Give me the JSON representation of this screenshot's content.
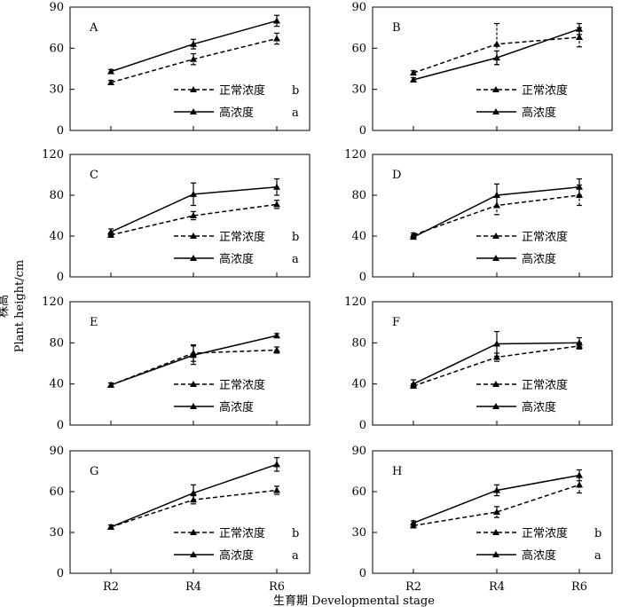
{
  "figure": {
    "xlabel": "生育期 Developmental stage",
    "ylabel_cn": "株高",
    "ylabel_en": "Plant height/cm"
  },
  "chart_data": [
    {
      "type": "line",
      "panel": "A",
      "x": [
        "R2",
        "R4",
        "R6"
      ],
      "ylim": [
        0,
        90
      ],
      "yticks": [
        0,
        30,
        60,
        90
      ],
      "series": [
        {
          "name": "正常浓度",
          "style": "dashed",
          "values": [
            35,
            52,
            67
          ],
          "errors": [
            1.5,
            4,
            4
          ]
        },
        {
          "name": "高浓度",
          "style": "solid",
          "values": [
            43,
            63,
            80
          ],
          "errors": [
            1.5,
            3.5,
            4
          ]
        }
      ],
      "legend_marks": [
        "b",
        "a"
      ]
    },
    {
      "type": "line",
      "panel": "B",
      "x": [
        "R2",
        "R4",
        "R6"
      ],
      "ylim": [
        0,
        90
      ],
      "yticks": [
        0,
        30,
        60,
        90
      ],
      "series": [
        {
          "name": "正常浓度",
          "style": "dashed",
          "values": [
            42,
            63,
            68
          ],
          "errors": [
            1.5,
            15,
            7
          ]
        },
        {
          "name": "高浓度",
          "style": "solid",
          "values": [
            37,
            53,
            74
          ],
          "errors": [
            1.5,
            5,
            4
          ]
        }
      ],
      "legend_marks": [
        "",
        ""
      ]
    },
    {
      "type": "line",
      "panel": "C",
      "x": [
        "R2",
        "R4",
        "R6"
      ],
      "ylim": [
        0,
        120
      ],
      "yticks": [
        0,
        40,
        80,
        120
      ],
      "series": [
        {
          "name": "正常浓度",
          "style": "dashed",
          "values": [
            41,
            60,
            71
          ],
          "errors": [
            2,
            4,
            4
          ]
        },
        {
          "name": "高浓度",
          "style": "solid",
          "values": [
            44,
            81,
            88
          ],
          "errors": [
            3,
            11,
            8
          ]
        }
      ],
      "legend_marks": [
        "b",
        "a"
      ]
    },
    {
      "type": "line",
      "panel": "D",
      "x": [
        "R2",
        "R4",
        "R6"
      ],
      "ylim": [
        0,
        120
      ],
      "yticks": [
        0,
        40,
        80,
        120
      ],
      "series": [
        {
          "name": "正常浓度",
          "style": "dashed",
          "values": [
            41,
            70,
            80
          ],
          "errors": [
            2,
            9,
            10
          ]
        },
        {
          "name": "高浓度",
          "style": "solid",
          "values": [
            39,
            80,
            88
          ],
          "errors": [
            2,
            11,
            8
          ]
        }
      ],
      "legend_marks": [
        "",
        ""
      ]
    },
    {
      "type": "line",
      "panel": "E",
      "x": [
        "R2",
        "R4",
        "R6"
      ],
      "ylim": [
        0,
        120
      ],
      "yticks": [
        0,
        40,
        80,
        120
      ],
      "series": [
        {
          "name": "正常浓度",
          "style": "dashed",
          "values": [
            39,
            70,
            73
          ],
          "errors": [
            2,
            8,
            3
          ]
        },
        {
          "name": "高浓度",
          "style": "solid",
          "values": [
            39,
            68,
            87
          ],
          "errors": [
            2,
            9,
            2
          ]
        }
      ],
      "legend_marks": [
        "",
        ""
      ]
    },
    {
      "type": "line",
      "panel": "F",
      "x": [
        "R2",
        "R4",
        "R6"
      ],
      "ylim": [
        0,
        120
      ],
      "yticks": [
        0,
        40,
        80,
        120
      ],
      "series": [
        {
          "name": "正常浓度",
          "style": "dashed",
          "values": [
            38,
            66,
            77
          ],
          "errors": [
            2,
            4,
            3
          ]
        },
        {
          "name": "高浓度",
          "style": "solid",
          "values": [
            40,
            79,
            80
          ],
          "errors": [
            4,
            12,
            5
          ]
        }
      ],
      "legend_marks": [
        "",
        ""
      ]
    },
    {
      "type": "line",
      "panel": "G",
      "x": [
        "R2",
        "R4",
        "R6"
      ],
      "ylim": [
        0,
        90
      ],
      "yticks": [
        0,
        30,
        60,
        90
      ],
      "series": [
        {
          "name": "正常浓度",
          "style": "dashed",
          "values": [
            34,
            54,
            61
          ],
          "errors": [
            1.5,
            3,
            3
          ]
        },
        {
          "name": "高浓度",
          "style": "solid",
          "values": [
            34,
            59,
            80
          ],
          "errors": [
            1.5,
            6,
            5
          ]
        }
      ],
      "legend_marks": [
        "b",
        "a"
      ]
    },
    {
      "type": "line",
      "panel": "H",
      "x": [
        "R2",
        "R4",
        "R6"
      ],
      "ylim": [
        0,
        90
      ],
      "yticks": [
        0,
        30,
        60,
        90
      ],
      "series": [
        {
          "name": "正常浓度",
          "style": "dashed",
          "values": [
            35,
            45,
            65
          ],
          "errors": [
            1.5,
            4,
            6
          ]
        },
        {
          "name": "高浓度",
          "style": "solid",
          "values": [
            37,
            61,
            72
          ],
          "errors": [
            1.5,
            4,
            4
          ]
        }
      ],
      "legend_marks": [
        "b",
        "a"
      ]
    }
  ]
}
